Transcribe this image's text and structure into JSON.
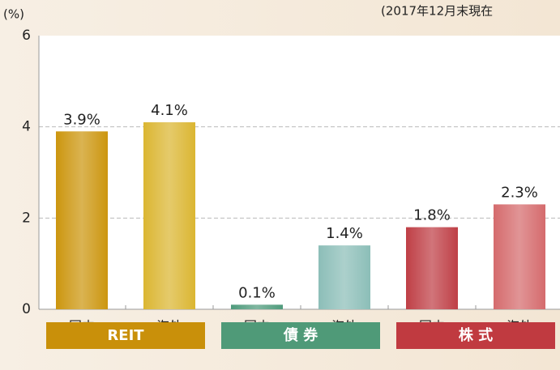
{
  "chart_data": {
    "type": "bar",
    "note": "(2017年12月末現在",
    "y_label": "(%)",
    "categories": [
      "国内",
      "海外",
      "国内",
      "海外",
      "国内",
      "海外"
    ],
    "values": [
      3.9,
      4.1,
      0.1,
      1.4,
      1.8,
      2.3
    ],
    "value_labels": [
      "3.9%",
      "4.1%",
      "0.1%",
      "1.4%",
      "1.8%",
      "2.3%"
    ],
    "colors": [
      "#cc960f",
      "#dbb632",
      "#4f9b7c",
      "#8cbeb8",
      "#bf3f46",
      "#d56b6d"
    ],
    "groups": [
      {
        "label": "REIT",
        "color": "#c9900a"
      },
      {
        "label": "債 券",
        "color": "#4f9a78"
      },
      {
        "label": "株 式",
        "color": "#c03a40"
      }
    ],
    "ylim": [
      0,
      6
    ],
    "yticks": [
      0,
      2,
      4,
      6
    ],
    "grid": true
  }
}
